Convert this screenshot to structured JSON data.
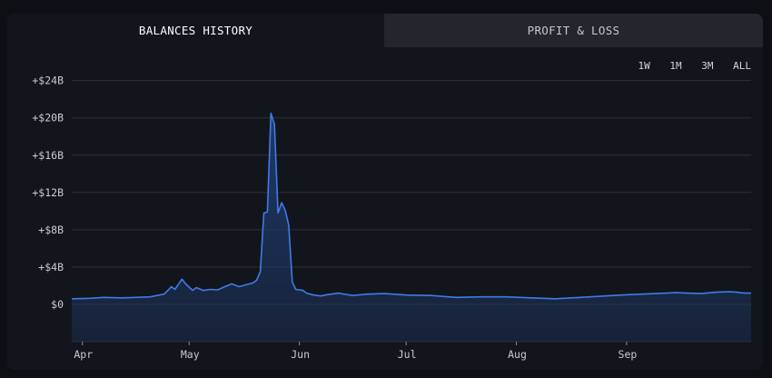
{
  "tabs": [
    {
      "label": "BALANCES HISTORY",
      "active": true
    },
    {
      "label": "PROFIT & LOSS",
      "active": false
    }
  ],
  "ranges": [
    "1W",
    "1M",
    "3M",
    "ALL"
  ],
  "colors": {
    "line": "#3f7be6",
    "fill": "#1f3b6e",
    "grid": "#2c3038",
    "background": "#12151b"
  },
  "chart_data": {
    "type": "area",
    "title": "",
    "xlabel": "",
    "ylabel": "",
    "ylim": [
      -4,
      26.5
    ],
    "grid": true,
    "y_ticks": [
      {
        "value": 24,
        "label": "+$24B"
      },
      {
        "value": 20,
        "label": "+$20B"
      },
      {
        "value": 16,
        "label": "+$16B"
      },
      {
        "value": 12,
        "label": "+$12B"
      },
      {
        "value": 8,
        "label": "+$8B"
      },
      {
        "value": 4,
        "label": "+$4B"
      },
      {
        "value": 0,
        "label": "$0"
      }
    ],
    "x_ticks": [
      {
        "date": "2024-04-01",
        "label": "Apr"
      },
      {
        "date": "2024-05-01",
        "label": "May"
      },
      {
        "date": "2024-06-01",
        "label": "Jun"
      },
      {
        "date": "2024-07-01",
        "label": "Jul"
      },
      {
        "date": "2024-08-01",
        "label": "Aug"
      },
      {
        "date": "2024-09-01",
        "label": "Sep"
      }
    ],
    "series": [
      {
        "points": [
          [
            "2024-03-29",
            0.6
          ],
          [
            "2024-04-03",
            0.65
          ],
          [
            "2024-04-07",
            0.75
          ],
          [
            "2024-04-12",
            0.7
          ],
          [
            "2024-04-16",
            0.75
          ],
          [
            "2024-04-20",
            0.8
          ],
          [
            "2024-04-24",
            1.1
          ],
          [
            "2024-04-26",
            1.9
          ],
          [
            "2024-04-27",
            1.6
          ],
          [
            "2024-04-29",
            2.7
          ],
          [
            "2024-04-30",
            2.2
          ],
          [
            "2024-05-02",
            1.5
          ],
          [
            "2024-05-03",
            1.8
          ],
          [
            "2024-05-05",
            1.5
          ],
          [
            "2024-05-07",
            1.6
          ],
          [
            "2024-05-09",
            1.55
          ],
          [
            "2024-05-11",
            1.9
          ],
          [
            "2024-05-13",
            2.2
          ],
          [
            "2024-05-15",
            1.9
          ],
          [
            "2024-05-17",
            2.1
          ],
          [
            "2024-05-19",
            2.3
          ],
          [
            "2024-05-20",
            2.6
          ],
          [
            "2024-05-21",
            3.5
          ],
          [
            "2024-05-22",
            9.8
          ],
          [
            "2024-05-23",
            9.9
          ],
          [
            "2024-05-24",
            20.5
          ],
          [
            "2024-05-25",
            19.3
          ],
          [
            "2024-05-26",
            9.8
          ],
          [
            "2024-05-27",
            10.9
          ],
          [
            "2024-05-28",
            10.1
          ],
          [
            "2024-05-29",
            8.5
          ],
          [
            "2024-05-30",
            2.4
          ],
          [
            "2024-05-31",
            1.6
          ],
          [
            "2024-06-02",
            1.5
          ],
          [
            "2024-06-03",
            1.2
          ],
          [
            "2024-06-05",
            1.0
          ],
          [
            "2024-06-07",
            0.9
          ],
          [
            "2024-06-09",
            1.05
          ],
          [
            "2024-06-12",
            1.2
          ],
          [
            "2024-06-16",
            0.95
          ],
          [
            "2024-06-20",
            1.1
          ],
          [
            "2024-06-25",
            1.15
          ],
          [
            "2024-07-01",
            1.0
          ],
          [
            "2024-07-08",
            0.95
          ],
          [
            "2024-07-15",
            0.75
          ],
          [
            "2024-07-22",
            0.8
          ],
          [
            "2024-07-29",
            0.8
          ],
          [
            "2024-08-05",
            0.7
          ],
          [
            "2024-08-12",
            0.6
          ],
          [
            "2024-08-19",
            0.75
          ],
          [
            "2024-08-26",
            0.9
          ],
          [
            "2024-09-02",
            1.05
          ],
          [
            "2024-09-09",
            1.15
          ],
          [
            "2024-09-15",
            1.25
          ],
          [
            "2024-09-22",
            1.15
          ],
          [
            "2024-09-26",
            1.3
          ],
          [
            "2024-09-30",
            1.35
          ],
          [
            "2024-10-02",
            1.3
          ],
          [
            "2024-10-04",
            1.2
          ],
          [
            "2024-10-06",
            1.2
          ]
        ]
      }
    ]
  }
}
